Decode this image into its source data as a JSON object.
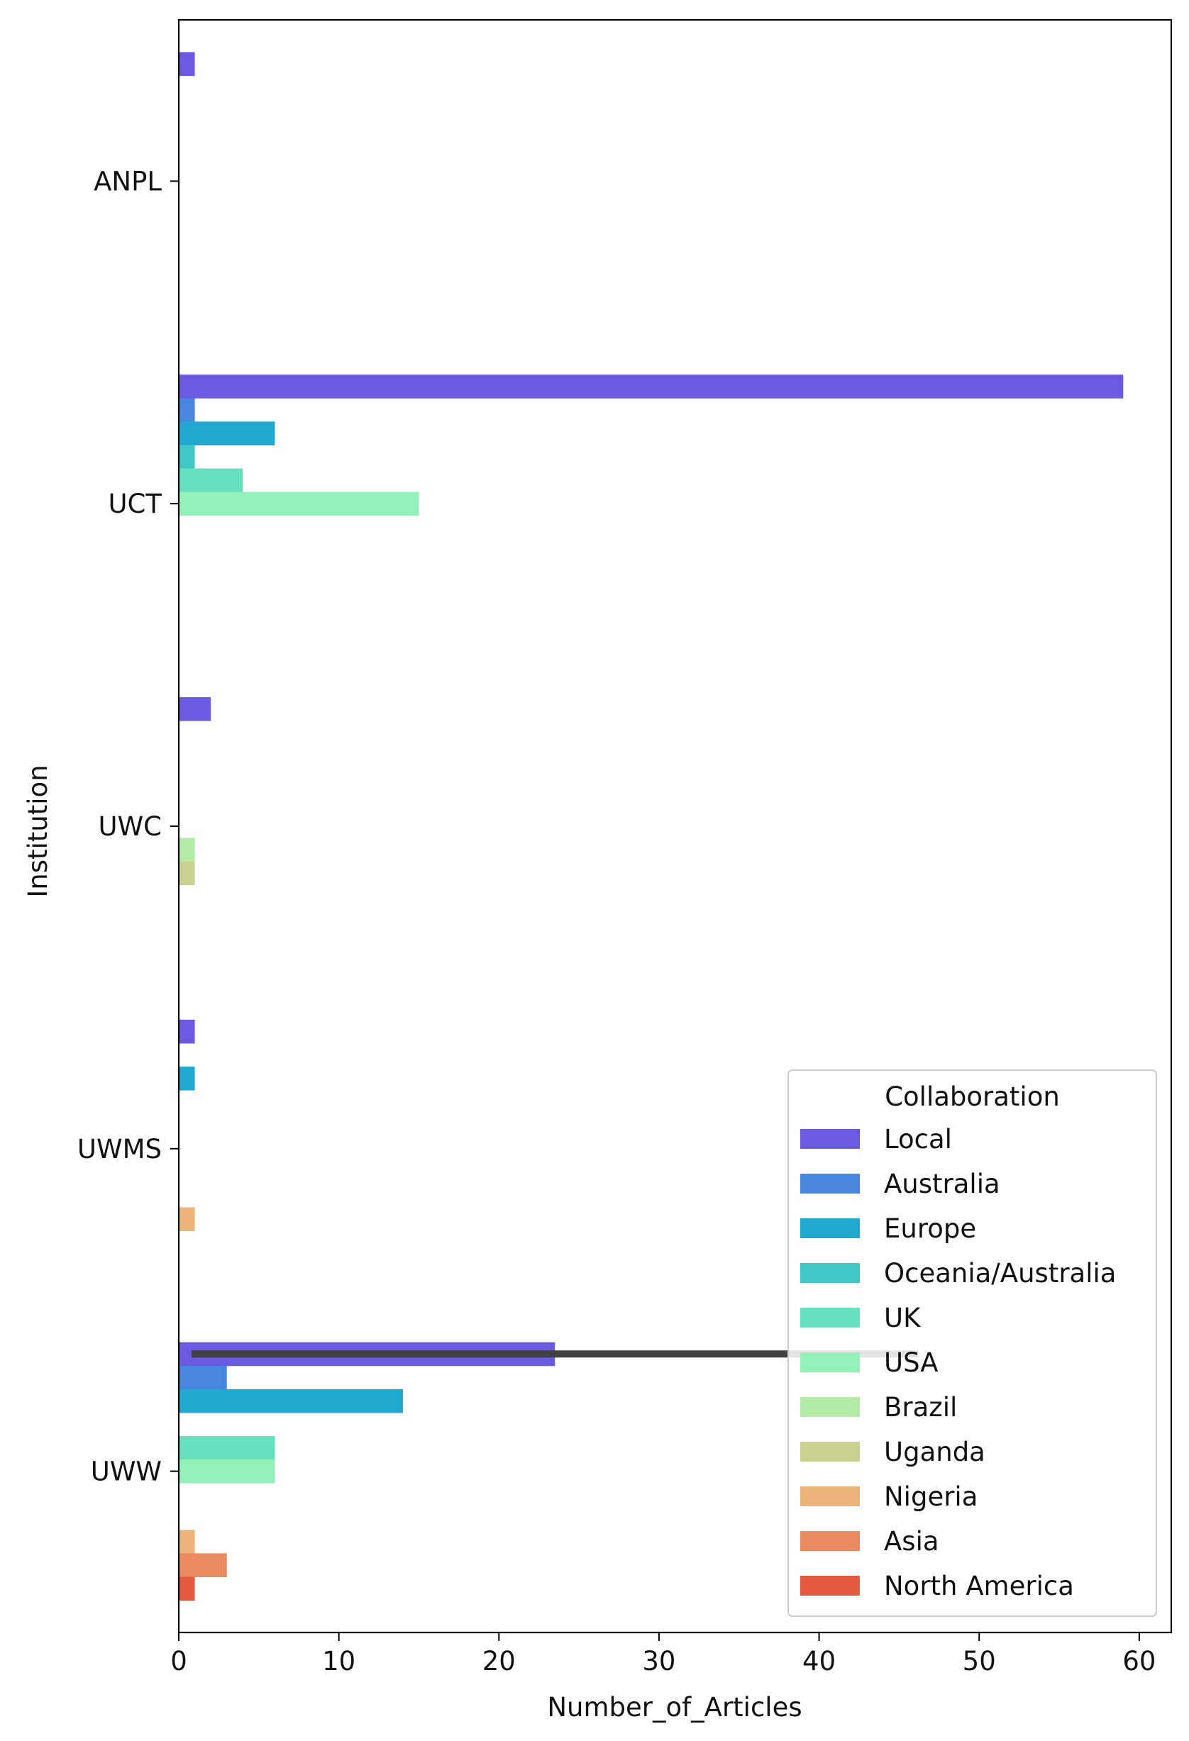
{
  "chart_data": {
    "type": "bar",
    "orientation": "horizontal",
    "title": "",
    "xlabel": "Number_of_Articles",
    "ylabel": "Institution",
    "xlim": [
      0,
      62
    ],
    "xticks": [
      0,
      10,
      20,
      30,
      40,
      50,
      60
    ],
    "xtick_labels": [
      "0",
      "10",
      "20",
      "30",
      "40",
      "50",
      "60"
    ],
    "grid": false,
    "categories": [
      "ANPL",
      "UCT",
      "UWC",
      "UWMS",
      "UWW"
    ],
    "series": [
      {
        "name": "Local",
        "color": "#6a5ae2",
        "values": [
          1,
          59,
          2,
          1,
          23.5
        ]
      },
      {
        "name": "Australia",
        "color": "#4686df",
        "values": [
          null,
          1,
          null,
          null,
          3
        ]
      },
      {
        "name": "Europe",
        "color": "#20a8d1",
        "values": [
          null,
          6,
          null,
          1,
          14
        ]
      },
      {
        "name": "Oceania/Australia",
        "color": "#41c8c6",
        "values": [
          null,
          1,
          null,
          null,
          null
        ]
      },
      {
        "name": "UK",
        "color": "#66e1c0",
        "values": [
          null,
          4,
          null,
          null,
          6
        ]
      },
      {
        "name": "USA",
        "color": "#93f0b8",
        "values": [
          null,
          15,
          null,
          null,
          6
        ]
      },
      {
        "name": "Brazil",
        "color": "#b1eba6",
        "values": [
          null,
          null,
          1,
          null,
          null
        ]
      },
      {
        "name": "Uganda",
        "color": "#cbd18e",
        "values": [
          null,
          null,
          1,
          null,
          null
        ]
      },
      {
        "name": "Nigeria",
        "color": "#edb479",
        "values": [
          null,
          null,
          null,
          1,
          1
        ]
      },
      {
        "name": "Asia",
        "color": "#ea8a5f",
        "values": [
          null,
          null,
          null,
          null,
          3
        ]
      },
      {
        "name": "North America",
        "color": "#e55b40",
        "values": [
          null,
          null,
          null,
          null,
          1
        ]
      }
    ],
    "error_bars": [
      {
        "category": "UWW",
        "series": "Local",
        "low": 0.8,
        "high": 46.2
      }
    ],
    "legend": {
      "title": "Collaboration",
      "placement": "lower right"
    }
  }
}
